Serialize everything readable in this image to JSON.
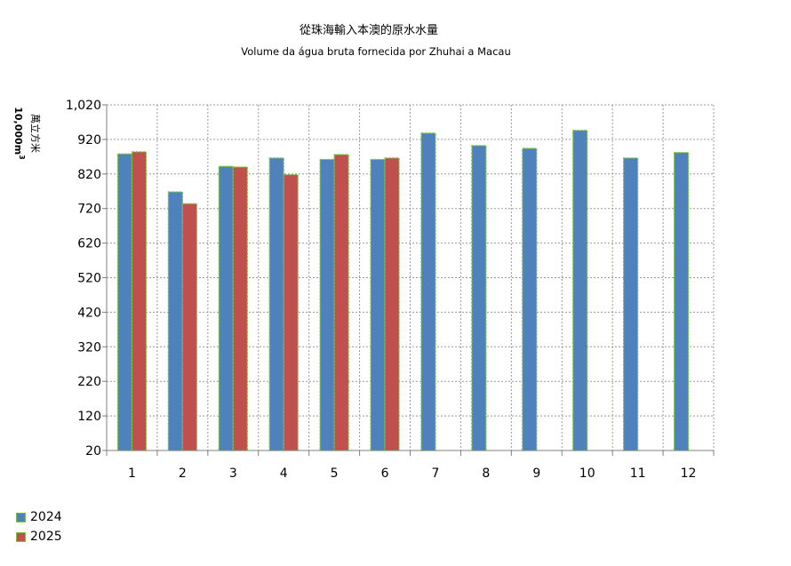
{
  "chart_data": {
    "type": "bar",
    "title": "從珠海輸入本澳的原水水量",
    "subtitle": "Volume da água bruta fornecida por Zhuhai a Macau",
    "ylabel_zh": "萬立方米",
    "ylabel_unit": "10,000m",
    "ylabel_sup": "3",
    "categories": [
      "1",
      "2",
      "3",
      "4",
      "5",
      "6",
      "7",
      "8",
      "9",
      "10",
      "11",
      "12"
    ],
    "yticks": [
      "20",
      "120",
      "220",
      "320",
      "420",
      "520",
      "620",
      "720",
      "820",
      "920",
      "1,020"
    ],
    "ylim": [
      20,
      1020
    ],
    "grid": true,
    "legend_position": "bottom-left",
    "series": [
      {
        "name": "2024",
        "color": "#4f81bd",
        "values": [
          878,
          768,
          842,
          866,
          862,
          862,
          938,
          902,
          894,
          946,
          866,
          882
        ]
      },
      {
        "name": "2025",
        "color": "#c0504d",
        "values": [
          884,
          734,
          840,
          818,
          876,
          866,
          null,
          null,
          null,
          null,
          null,
          null
        ]
      }
    ]
  }
}
